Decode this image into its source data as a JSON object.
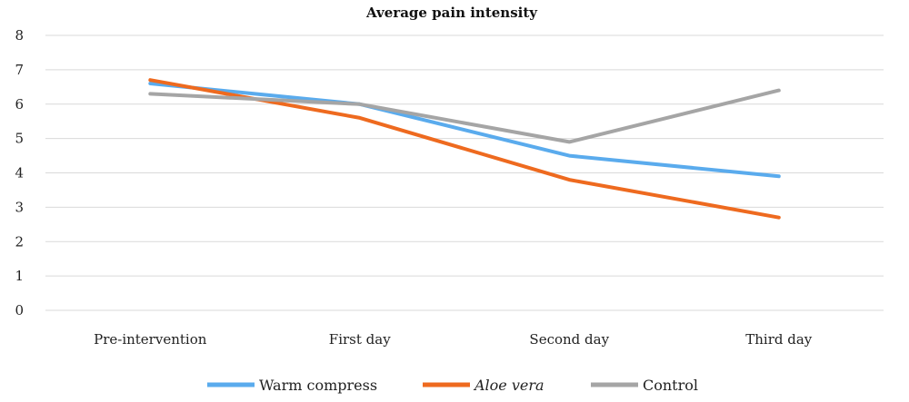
{
  "chart_data": {
    "type": "line",
    "title": "Average pain intensity",
    "categories": [
      "Pre-intervention",
      "First day",
      "Second day",
      "Third day"
    ],
    "series": [
      {
        "name": "Warm compress",
        "values": [
          6.6,
          6.0,
          4.5,
          3.9
        ],
        "color": "#5aabed",
        "italic": false
      },
      {
        "name": "Aloe vera",
        "values": [
          6.7,
          5.6,
          3.8,
          2.7
        ],
        "color": "#ee6a1f",
        "italic": true
      },
      {
        "name": "Control",
        "values": [
          6.3,
          6.0,
          4.9,
          6.4
        ],
        "color": "#a5a5a5",
        "italic": false
      }
    ],
    "ylim": [
      0,
      8
    ],
    "yticks": [
      "0",
      "1",
      "2",
      "3",
      "4",
      "5",
      "6",
      "7",
      "8"
    ],
    "grid": true,
    "legend_position": "bottom"
  }
}
